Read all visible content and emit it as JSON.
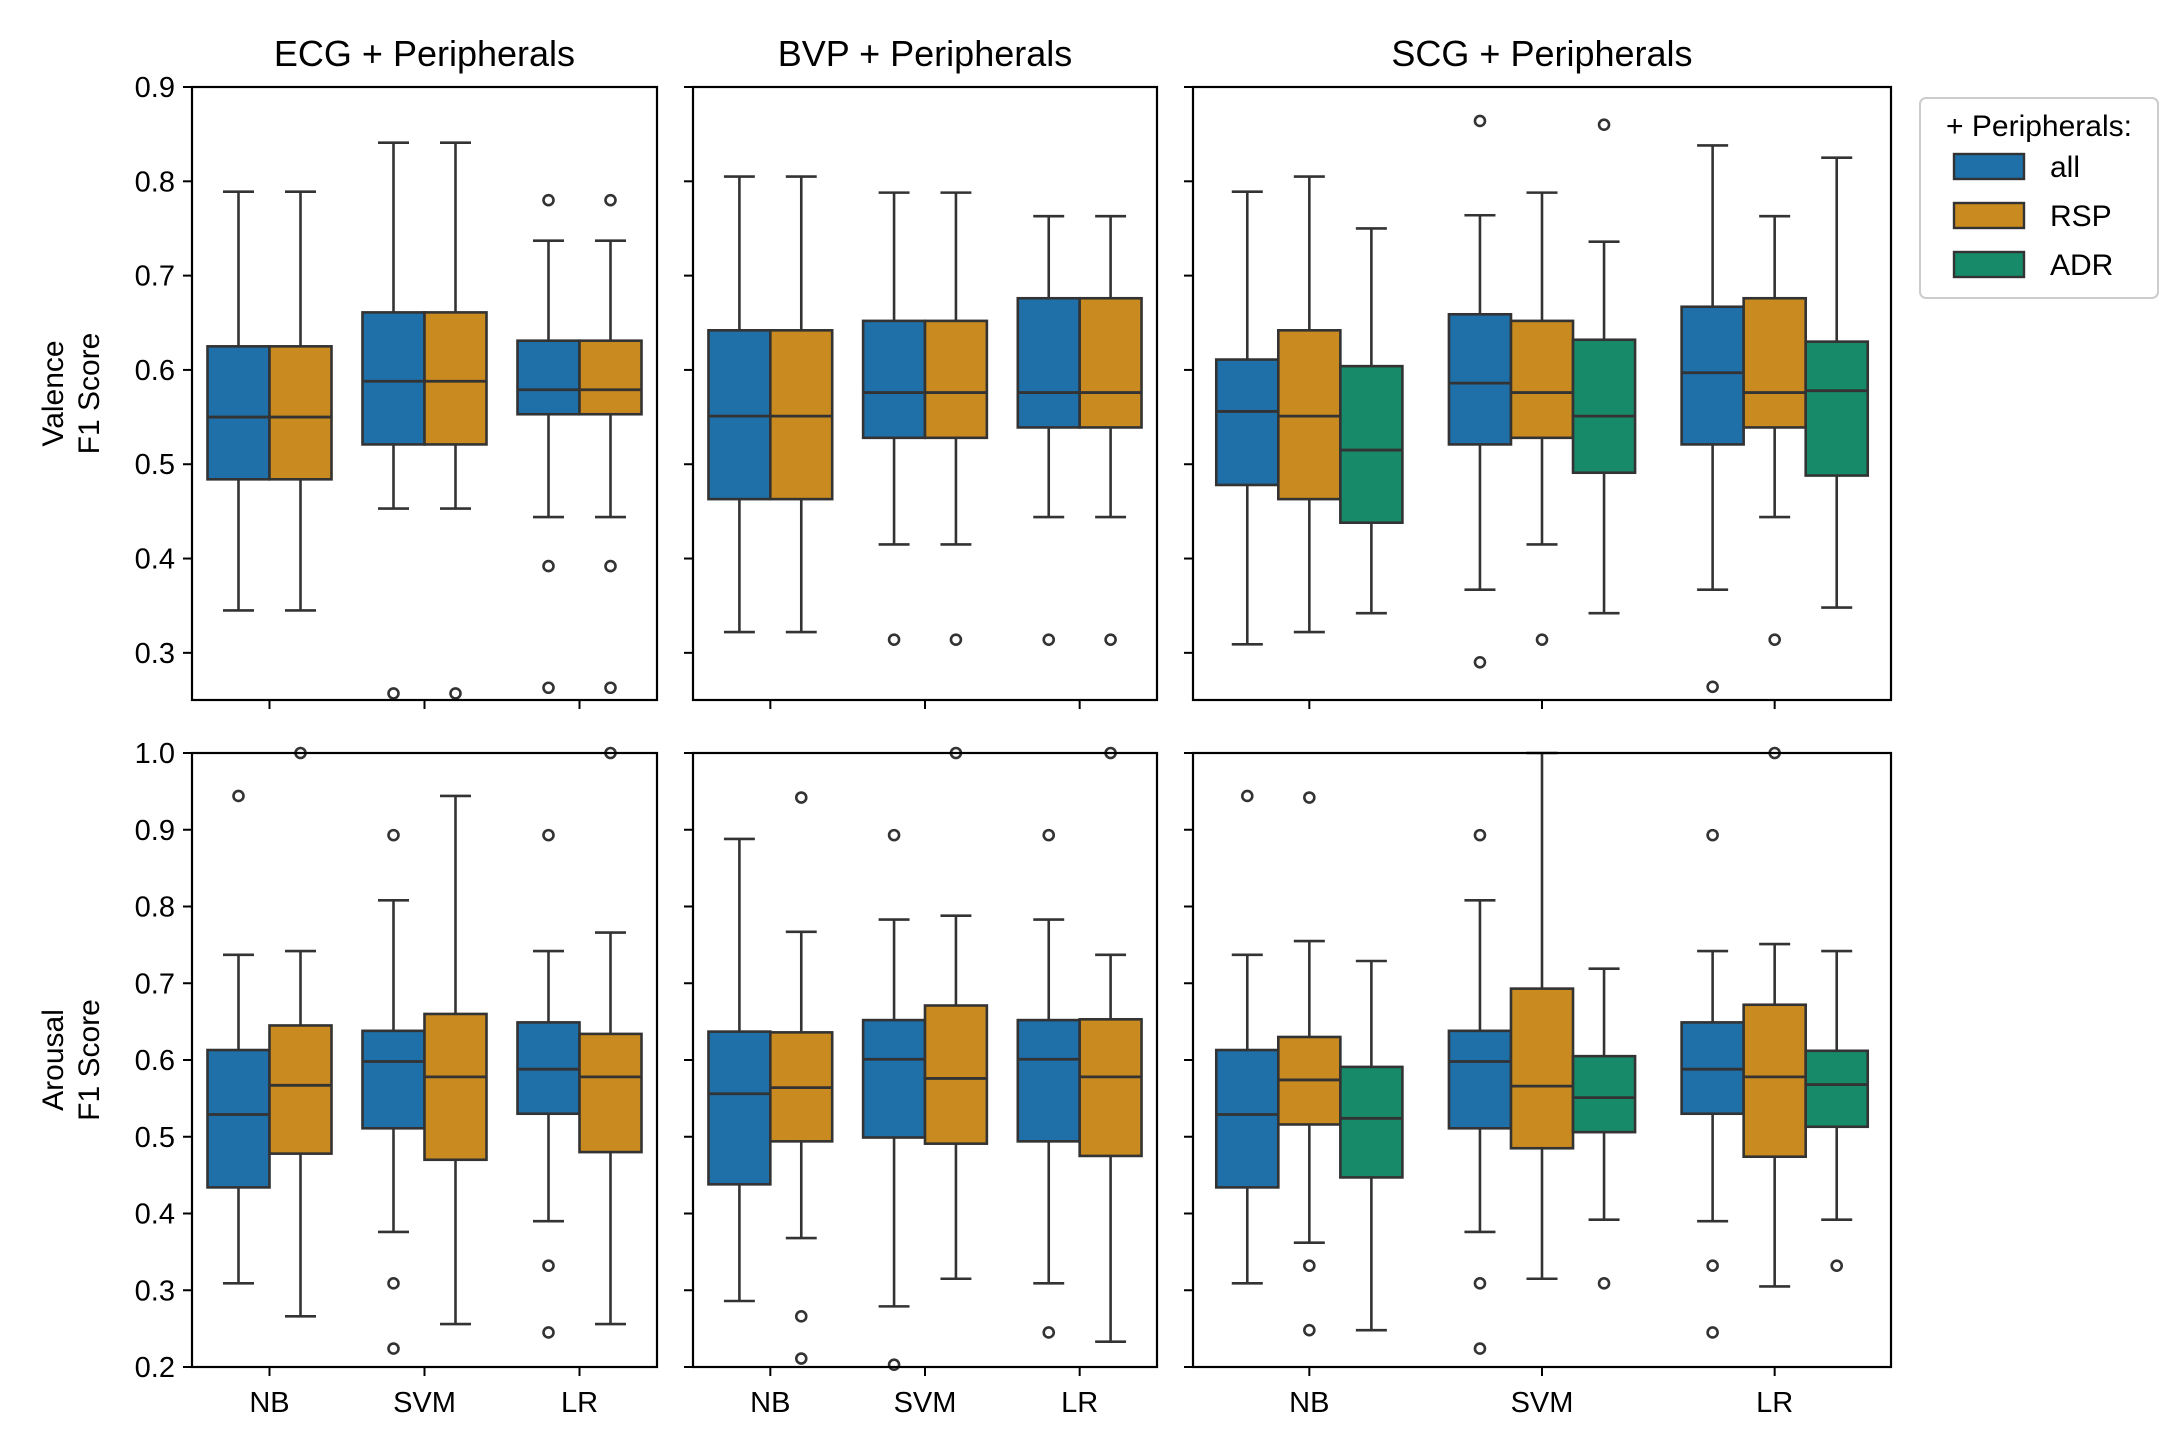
{
  "chart_data": {
    "type": "box",
    "legend": {
      "title": "+ Peripherals:",
      "entries": [
        {
          "name": "all",
          "color": "#1f6fa8"
        },
        {
          "name": "RSP",
          "color": "#c98a1f"
        },
        {
          "name": "ADR",
          "color": "#178a6a"
        }
      ],
      "placement": "right"
    },
    "columns": [
      "ECG + Peripherals",
      "BVP + Peripherals",
      "SCG + Peripherals"
    ],
    "categories": [
      "NB",
      "SVM",
      "LR"
    ],
    "rows": [
      {
        "ylabel_line1": "Valence",
        "ylabel_line2": "F1 Score",
        "ylim": [
          0.25,
          0.9
        ],
        "yticks": [
          "0.3",
          "0.4",
          "0.5",
          "0.6",
          "0.7",
          "0.8",
          "0.9"
        ],
        "panels": [
          {
            "column": "ECG + Peripherals",
            "series": [
              "all",
              "RSP"
            ],
            "groups": [
              {
                "category": "NB",
                "boxes": [
                  {
                    "series": "all",
                    "whislo": 0.345,
                    "q1": 0.484,
                    "med": 0.55,
                    "q3": 0.625,
                    "whishi": 0.789,
                    "fliers": []
                  },
                  {
                    "series": "RSP",
                    "whislo": 0.345,
                    "q1": 0.484,
                    "med": 0.55,
                    "q3": 0.625,
                    "whishi": 0.789,
                    "fliers": []
                  }
                ]
              },
              {
                "category": "SVM",
                "boxes": [
                  {
                    "series": "all",
                    "whislo": 0.453,
                    "q1": 0.521,
                    "med": 0.588,
                    "q3": 0.661,
                    "whishi": 0.841,
                    "fliers": [
                      0.257
                    ]
                  },
                  {
                    "series": "RSP",
                    "whislo": 0.453,
                    "q1": 0.521,
                    "med": 0.588,
                    "q3": 0.661,
                    "whishi": 0.841,
                    "fliers": [
                      0.257
                    ]
                  }
                ]
              },
              {
                "category": "LR",
                "boxes": [
                  {
                    "series": "all",
                    "whislo": 0.444,
                    "q1": 0.553,
                    "med": 0.579,
                    "q3": 0.631,
                    "whishi": 0.737,
                    "fliers": [
                      0.78,
                      0.392,
                      0.263
                    ]
                  },
                  {
                    "series": "RSP",
                    "whislo": 0.444,
                    "q1": 0.553,
                    "med": 0.579,
                    "q3": 0.631,
                    "whishi": 0.737,
                    "fliers": [
                      0.78,
                      0.392,
                      0.263
                    ]
                  }
                ]
              }
            ]
          },
          {
            "column": "BVP + Peripherals",
            "series": [
              "all",
              "RSP"
            ],
            "groups": [
              {
                "category": "NB",
                "boxes": [
                  {
                    "series": "all",
                    "whislo": 0.322,
                    "q1": 0.463,
                    "med": 0.551,
                    "q3": 0.642,
                    "whishi": 0.805,
                    "fliers": []
                  },
                  {
                    "series": "RSP",
                    "whislo": 0.322,
                    "q1": 0.463,
                    "med": 0.551,
                    "q3": 0.642,
                    "whishi": 0.805,
                    "fliers": []
                  }
                ]
              },
              {
                "category": "SVM",
                "boxes": [
                  {
                    "series": "all",
                    "whislo": 0.415,
                    "q1": 0.528,
                    "med": 0.576,
                    "q3": 0.652,
                    "whishi": 0.788,
                    "fliers": [
                      0.314
                    ]
                  },
                  {
                    "series": "RSP",
                    "whislo": 0.415,
                    "q1": 0.528,
                    "med": 0.576,
                    "q3": 0.652,
                    "whishi": 0.788,
                    "fliers": [
                      0.314
                    ]
                  }
                ]
              },
              {
                "category": "LR",
                "boxes": [
                  {
                    "series": "all",
                    "whislo": 0.444,
                    "q1": 0.539,
                    "med": 0.576,
                    "q3": 0.676,
                    "whishi": 0.763,
                    "fliers": [
                      0.314
                    ]
                  },
                  {
                    "series": "RSP",
                    "whislo": 0.444,
                    "q1": 0.539,
                    "med": 0.576,
                    "q3": 0.676,
                    "whishi": 0.763,
                    "fliers": [
                      0.314
                    ]
                  }
                ]
              }
            ]
          },
          {
            "column": "SCG + Peripherals",
            "series": [
              "all",
              "RSP",
              "ADR"
            ],
            "groups": [
              {
                "category": "NB",
                "boxes": [
                  {
                    "series": "all",
                    "whislo": 0.309,
                    "q1": 0.478,
                    "med": 0.556,
                    "q3": 0.611,
                    "whishi": 0.789,
                    "fliers": []
                  },
                  {
                    "series": "RSP",
                    "whislo": 0.322,
                    "q1": 0.463,
                    "med": 0.551,
                    "q3": 0.642,
                    "whishi": 0.805,
                    "fliers": []
                  },
                  {
                    "series": "ADR",
                    "whislo": 0.342,
                    "q1": 0.438,
                    "med": 0.515,
                    "q3": 0.604,
                    "whishi": 0.75,
                    "fliers": []
                  }
                ]
              },
              {
                "category": "SVM",
                "boxes": [
                  {
                    "series": "all",
                    "whislo": 0.367,
                    "q1": 0.521,
                    "med": 0.586,
                    "q3": 0.659,
                    "whishi": 0.764,
                    "fliers": [
                      0.864,
                      0.29
                    ]
                  },
                  {
                    "series": "RSP",
                    "whislo": 0.415,
                    "q1": 0.528,
                    "med": 0.576,
                    "q3": 0.652,
                    "whishi": 0.788,
                    "fliers": [
                      0.314
                    ]
                  },
                  {
                    "series": "ADR",
                    "whislo": 0.342,
                    "q1": 0.491,
                    "med": 0.551,
                    "q3": 0.632,
                    "whishi": 0.736,
                    "fliers": [
                      0.86
                    ]
                  }
                ]
              },
              {
                "category": "LR",
                "boxes": [
                  {
                    "series": "all",
                    "whislo": 0.367,
                    "q1": 0.521,
                    "med": 0.597,
                    "q3": 0.667,
                    "whishi": 0.838,
                    "fliers": [
                      0.264
                    ]
                  },
                  {
                    "series": "RSP",
                    "whislo": 0.444,
                    "q1": 0.539,
                    "med": 0.576,
                    "q3": 0.676,
                    "whishi": 0.763,
                    "fliers": [
                      0.314
                    ]
                  },
                  {
                    "series": "ADR",
                    "whislo": 0.348,
                    "q1": 0.488,
                    "med": 0.578,
                    "q3": 0.63,
                    "whishi": 0.825,
                    "fliers": []
                  }
                ]
              }
            ]
          }
        ]
      },
      {
        "ylabel_line1": "Arousal",
        "ylabel_line2": "F1 Score",
        "ylim": [
          0.2,
          1.0
        ],
        "yticks": [
          "0.2",
          "0.3",
          "0.4",
          "0.5",
          "0.6",
          "0.7",
          "0.8",
          "0.9",
          "1.0"
        ],
        "panels": [
          {
            "column": "ECG + Peripherals",
            "series": [
              "all",
              "RSP"
            ],
            "groups": [
              {
                "category": "NB",
                "boxes": [
                  {
                    "series": "all",
                    "whislo": 0.309,
                    "q1": 0.434,
                    "med": 0.529,
                    "q3": 0.613,
                    "whishi": 0.737,
                    "fliers": [
                      0.944
                    ]
                  },
                  {
                    "series": "RSP",
                    "whislo": 0.266,
                    "q1": 0.478,
                    "med": 0.567,
                    "q3": 0.645,
                    "whishi": 0.742,
                    "fliers": [
                      1.0
                    ]
                  }
                ]
              },
              {
                "category": "SVM",
                "boxes": [
                  {
                    "series": "all",
                    "whislo": 0.376,
                    "q1": 0.511,
                    "med": 0.598,
                    "q3": 0.638,
                    "whishi": 0.808,
                    "fliers": [
                      0.893,
                      0.309,
                      0.224
                    ]
                  },
                  {
                    "series": "RSP",
                    "whislo": 0.256,
                    "q1": 0.47,
                    "med": 0.578,
                    "q3": 0.66,
                    "whishi": 0.944,
                    "fliers": []
                  }
                ]
              },
              {
                "category": "LR",
                "boxes": [
                  {
                    "series": "all",
                    "whislo": 0.39,
                    "q1": 0.53,
                    "med": 0.588,
                    "q3": 0.649,
                    "whishi": 0.742,
                    "fliers": [
                      0.893,
                      0.332,
                      0.245
                    ]
                  },
                  {
                    "series": "RSP",
                    "whislo": 0.256,
                    "q1": 0.48,
                    "med": 0.578,
                    "q3": 0.634,
                    "whishi": 0.766,
                    "fliers": [
                      1.0
                    ]
                  }
                ]
              }
            ]
          },
          {
            "column": "BVP + Peripherals",
            "series": [
              "all",
              "RSP"
            ],
            "groups": [
              {
                "category": "NB",
                "boxes": [
                  {
                    "series": "all",
                    "whislo": 0.286,
                    "q1": 0.438,
                    "med": 0.556,
                    "q3": 0.637,
                    "whishi": 0.888,
                    "fliers": []
                  },
                  {
                    "series": "RSP",
                    "whislo": 0.368,
                    "q1": 0.494,
                    "med": 0.564,
                    "q3": 0.636,
                    "whishi": 0.767,
                    "fliers": [
                      0.942,
                      0.266,
                      0.211
                    ]
                  }
                ]
              },
              {
                "category": "SVM",
                "boxes": [
                  {
                    "series": "all",
                    "whislo": 0.279,
                    "q1": 0.499,
                    "med": 0.601,
                    "q3": 0.652,
                    "whishi": 0.783,
                    "fliers": [
                      0.893,
                      0.203
                    ]
                  },
                  {
                    "series": "RSP",
                    "whislo": 0.315,
                    "q1": 0.491,
                    "med": 0.576,
                    "q3": 0.671,
                    "whishi": 0.788,
                    "fliers": [
                      1.0
                    ]
                  }
                ]
              },
              {
                "category": "LR",
                "boxes": [
                  {
                    "series": "all",
                    "whislo": 0.309,
                    "q1": 0.494,
                    "med": 0.601,
                    "q3": 0.652,
                    "whishi": 0.783,
                    "fliers": [
                      0.893,
                      0.245
                    ]
                  },
                  {
                    "series": "RSP",
                    "whislo": 0.233,
                    "q1": 0.475,
                    "med": 0.578,
                    "q3": 0.653,
                    "whishi": 0.737,
                    "fliers": [
                      1.0
                    ]
                  }
                ]
              }
            ]
          },
          {
            "column": "SCG + Peripherals",
            "series": [
              "all",
              "RSP",
              "ADR"
            ],
            "groups": [
              {
                "category": "NB",
                "boxes": [
                  {
                    "series": "all",
                    "whislo": 0.309,
                    "q1": 0.434,
                    "med": 0.529,
                    "q3": 0.613,
                    "whishi": 0.737,
                    "fliers": [
                      0.944
                    ]
                  },
                  {
                    "series": "RSP",
                    "whislo": 0.362,
                    "q1": 0.516,
                    "med": 0.574,
                    "q3": 0.63,
                    "whishi": 0.755,
                    "fliers": [
                      0.942,
                      0.332,
                      0.248
                    ]
                  },
                  {
                    "series": "ADR",
                    "whislo": 0.248,
                    "q1": 0.447,
                    "med": 0.524,
                    "q3": 0.591,
                    "whishi": 0.729,
                    "fliers": []
                  }
                ]
              },
              {
                "category": "SVM",
                "boxes": [
                  {
                    "series": "all",
                    "whislo": 0.376,
                    "q1": 0.511,
                    "med": 0.598,
                    "q3": 0.638,
                    "whishi": 0.808,
                    "fliers": [
                      0.893,
                      0.309,
                      0.224
                    ]
                  },
                  {
                    "series": "RSP",
                    "whislo": 0.315,
                    "q1": 0.485,
                    "med": 0.566,
                    "q3": 0.693,
                    "whishi": 1.0,
                    "fliers": []
                  },
                  {
                    "series": "ADR",
                    "whislo": 0.392,
                    "q1": 0.506,
                    "med": 0.551,
                    "q3": 0.605,
                    "whishi": 0.719,
                    "fliers": [
                      0.309
                    ]
                  }
                ]
              },
              {
                "category": "LR",
                "boxes": [
                  {
                    "series": "all",
                    "whislo": 0.39,
                    "q1": 0.53,
                    "med": 0.588,
                    "q3": 0.649,
                    "whishi": 0.742,
                    "fliers": [
                      0.893,
                      0.332,
                      0.245
                    ]
                  },
                  {
                    "series": "RSP",
                    "whislo": 0.305,
                    "q1": 0.474,
                    "med": 0.578,
                    "q3": 0.672,
                    "whishi": 0.751,
                    "fliers": [
                      1.0
                    ]
                  },
                  {
                    "series": "ADR",
                    "whislo": 0.392,
                    "q1": 0.513,
                    "med": 0.568,
                    "q3": 0.612,
                    "whishi": 0.742,
                    "fliers": [
                      0.332
                    ]
                  }
                ]
              }
            ]
          }
        ]
      }
    ]
  }
}
